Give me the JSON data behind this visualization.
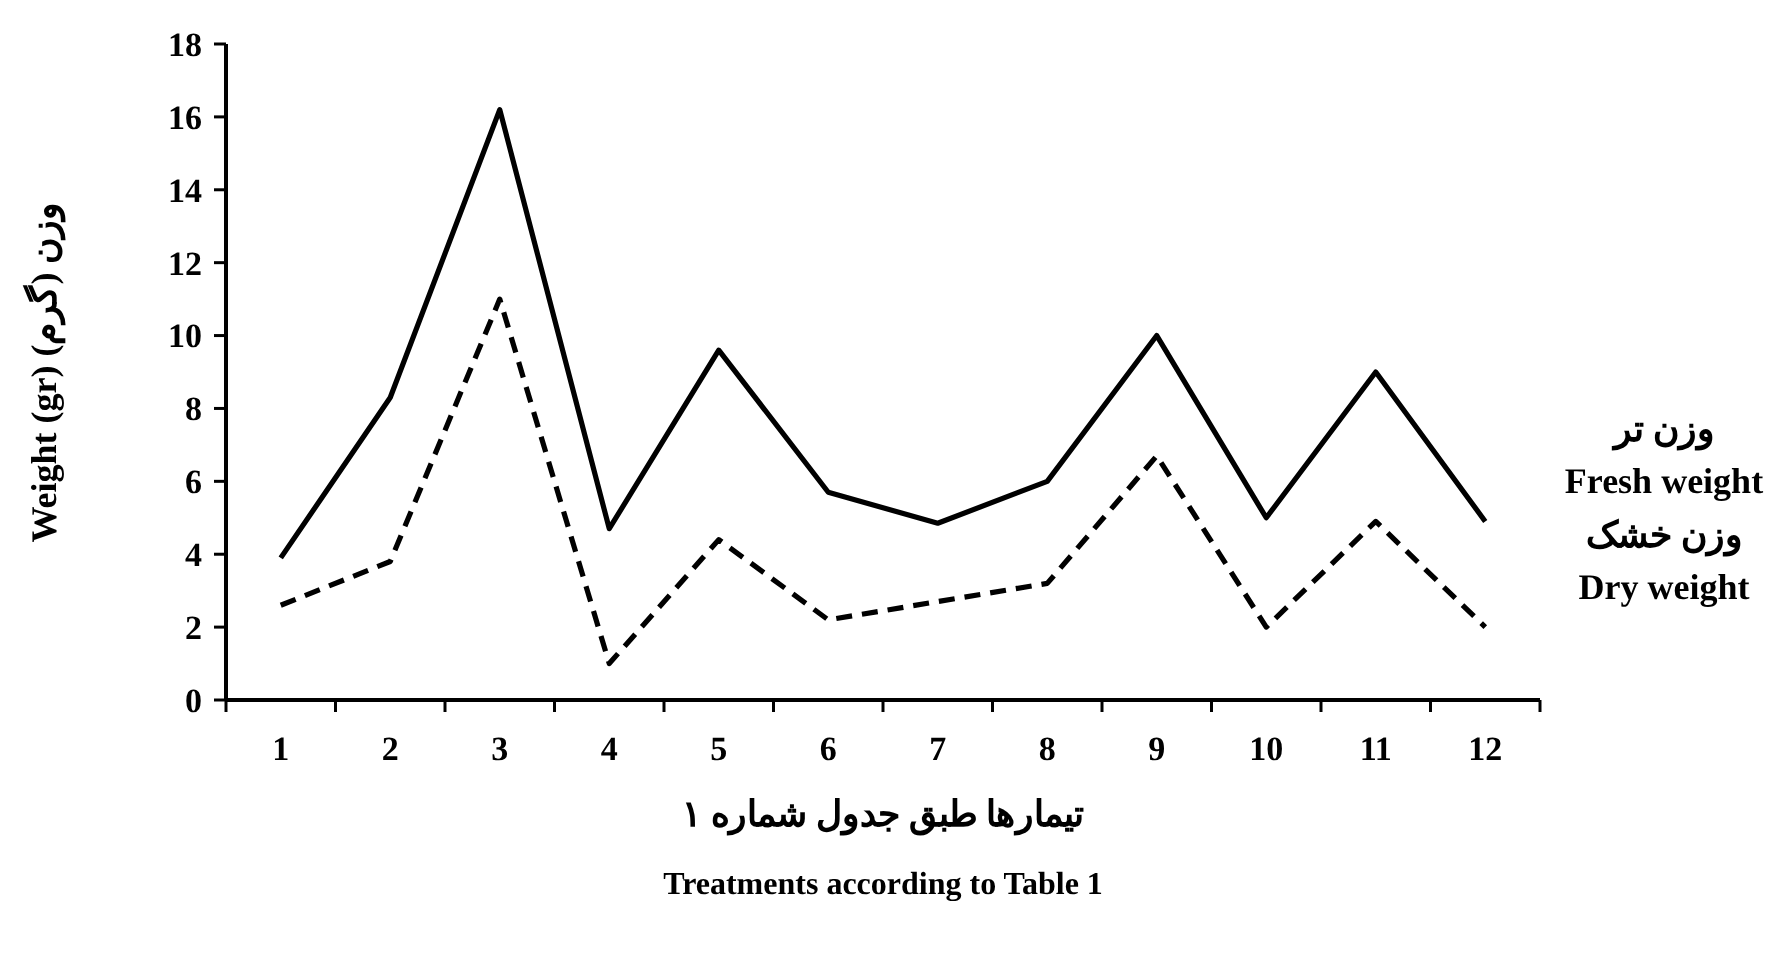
{
  "chart_data": {
    "type": "line",
    "xlabel": "تیمارها طبق جدول شماره ۱\nTreatments according to Table 1",
    "ylabel": "Weight (gr)   وزن (گرم)",
    "categories": [
      "1",
      "2",
      "3",
      "4",
      "5",
      "6",
      "7",
      "8",
      "9",
      "10",
      "11",
      "12"
    ],
    "series": [
      {
        "name": "وزن تر\nFresh weight",
        "color": "#000000",
        "line_style": "solid",
        "values": [
          3.9,
          8.3,
          16.2,
          4.7,
          9.6,
          5.7,
          4.85,
          6.0,
          10.0,
          5.0,
          9.0,
          4.9
        ]
      },
      {
        "name": "وزن خشک\nDry weight",
        "color": "#000000",
        "line_style": "dashed",
        "values": [
          2.6,
          3.8,
          11.0,
          1.0,
          4.4,
          2.2,
          2.7,
          3.2,
          6.7,
          2.0,
          4.9,
          2.0
        ]
      }
    ],
    "ylim": [
      0,
      18
    ],
    "yticks": [
      0,
      2,
      4,
      6,
      8,
      10,
      12,
      14,
      16,
      18
    ],
    "grid": false,
    "legend": "right",
    "marker": "none"
  }
}
